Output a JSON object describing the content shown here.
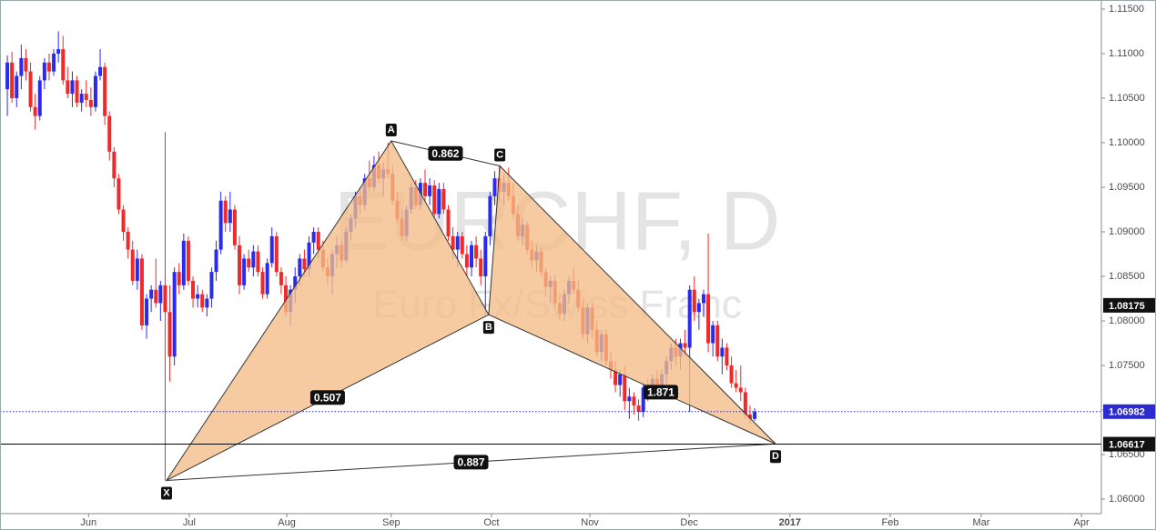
{
  "chart_data": {
    "type": "candlestick",
    "watermark": {
      "symbol": "EURCHF, D",
      "description": "Euro Fx/Swiss Franc"
    },
    "up_color": "#2b2bf0",
    "down_color": "#f02a2a",
    "pattern_color": "#f4bd87",
    "xlim": [
      -0.6,
      235.7
    ],
    "ylim": [
      1.05837,
      1.11602
    ],
    "xticks": [
      {
        "value": 17.5,
        "label": "Jun"
      },
      {
        "value": 39.2,
        "label": "Jul"
      },
      {
        "value": 60.2,
        "label": "Aug"
      },
      {
        "value": 82.7,
        "label": "Sep"
      },
      {
        "value": 104.3,
        "label": "Oct"
      },
      {
        "value": 125.5,
        "label": "Nov"
      },
      {
        "value": 146.9,
        "label": "Dec"
      },
      {
        "value": 168.6,
        "label": "2017"
      },
      {
        "value": 190.2,
        "label": "Feb"
      },
      {
        "value": 209.8,
        "label": "Mar"
      },
      {
        "value": 231.4,
        "label": "Apr"
      }
    ],
    "yticks": [
      {
        "value": 1.06,
        "label": "1.06000"
      },
      {
        "value": 1.065,
        "label": "1.06500"
      },
      {
        "value": 1.07,
        "label": "1.07000"
      },
      {
        "value": 1.075,
        "label": "1.07500"
      },
      {
        "value": 1.08,
        "label": "1.08000"
      },
      {
        "value": 1.085,
        "label": "1.08500"
      },
      {
        "value": 1.09,
        "label": "1.09000"
      },
      {
        "value": 1.095,
        "label": "1.09500"
      },
      {
        "value": 1.1,
        "label": "1.10000"
      },
      {
        "value": 1.105,
        "label": "1.10500"
      },
      {
        "value": 1.11,
        "label": "1.11000"
      },
      {
        "value": 1.115,
        "label": "1.11500"
      }
    ],
    "last_price": {
      "value": 1.06982,
      "label": "1.06982"
    },
    "levels": [
      {
        "value": 1.08175,
        "label": "1.08175"
      },
      {
        "value": 1.06617,
        "label": "1.06617"
      }
    ],
    "pattern": {
      "points": [
        {
          "label": "X",
          "x": 34.3,
          "y": 1.0621
        },
        {
          "label": "A",
          "x": 82.7,
          "y": 1.1002
        },
        {
          "label": "B",
          "x": 103.7,
          "y": 1.0807
        },
        {
          "label": "C",
          "x": 106.1,
          "y": 1.0974
        },
        {
          "label": "D",
          "x": 165.5,
          "y": 1.0662
        }
      ],
      "ratios": [
        0.862,
        0.507,
        1.871,
        0.887
      ]
    },
    "candles": [
      [
        1.106,
        1.1098,
        1.103,
        1.109
      ],
      [
        1.109,
        1.1102,
        1.1045,
        1.105
      ],
      [
        1.105,
        1.108,
        1.104,
        1.1075
      ],
      [
        1.1075,
        1.111,
        1.106,
        1.1095
      ],
      [
        1.1095,
        1.1105,
        1.107,
        1.108
      ],
      [
        1.108,
        1.109,
        1.1035,
        1.104
      ],
      [
        1.104,
        1.1055,
        1.1015,
        1.103
      ],
      [
        1.103,
        1.1075,
        1.1025,
        1.107
      ],
      [
        1.107,
        1.1095,
        1.106,
        1.109
      ],
      [
        1.109,
        1.11,
        1.107,
        1.108
      ],
      [
        1.108,
        1.1105,
        1.1075,
        1.11
      ],
      [
        1.11,
        1.1125,
        1.109,
        1.1105
      ],
      [
        1.1105,
        1.112,
        1.1065,
        1.107
      ],
      [
        1.107,
        1.1085,
        1.105,
        1.1055
      ],
      [
        1.1055,
        1.108,
        1.104,
        1.107
      ],
      [
        1.107,
        1.1075,
        1.104,
        1.1045
      ],
      [
        1.1045,
        1.106,
        1.1035,
        1.1055
      ],
      [
        1.1055,
        1.107,
        1.104,
        1.1048
      ],
      [
        1.1048,
        1.1062,
        1.103,
        1.104
      ],
      [
        1.104,
        1.108,
        1.1035,
        1.1075
      ],
      [
        1.1075,
        1.1105,
        1.107,
        1.1085
      ],
      [
        1.1085,
        1.109,
        1.102,
        1.103
      ],
      [
        1.103,
        1.1035,
        1.098,
        1.099
      ],
      [
        1.099,
        1.0995,
        1.095,
        1.096
      ],
      [
        1.096,
        1.0965,
        1.092,
        1.0925
      ],
      [
        1.0925,
        1.093,
        1.089,
        1.09
      ],
      [
        1.09,
        1.0905,
        1.087,
        1.088
      ],
      [
        1.088,
        1.089,
        1.084,
        1.0845
      ],
      [
        1.0845,
        1.088,
        1.0835,
        1.087
      ],
      [
        1.087,
        1.0875,
        1.079,
        1.0795
      ],
      [
        1.0795,
        1.083,
        1.078,
        1.0825
      ],
      [
        1.0825,
        1.084,
        1.081,
        1.0835
      ],
      [
        1.0835,
        1.087,
        1.0815,
        1.082
      ],
      [
        1.082,
        1.0845,
        1.08,
        1.084
      ],
      [
        1.084,
        1.1012,
        1.0621,
        1.081
      ],
      [
        1.081,
        1.084,
        1.0732,
        1.076
      ],
      [
        1.076,
        1.086,
        1.075,
        1.0855
      ],
      [
        1.0855,
        1.0865,
        1.083,
        1.084
      ],
      [
        1.084,
        1.0898,
        1.0835,
        1.089
      ],
      [
        1.089,
        1.0895,
        1.084,
        1.0845
      ],
      [
        1.0845,
        1.085,
        1.0815,
        1.0825
      ],
      [
        1.0825,
        1.084,
        1.0815,
        1.083
      ],
      [
        1.083,
        1.0835,
        1.081,
        1.0815
      ],
      [
        1.0815,
        1.083,
        1.0805,
        1.0825
      ],
      [
        1.0825,
        1.086,
        1.0815,
        1.0855
      ],
      [
        1.0855,
        1.089,
        1.0845,
        1.088
      ],
      [
        1.088,
        1.0945,
        1.0875,
        1.0935
      ],
      [
        1.0935,
        1.094,
        1.09,
        1.091
      ],
      [
        1.091,
        1.0945,
        1.09,
        1.0925
      ],
      [
        1.0925,
        1.093,
        1.088,
        1.0885
      ],
      [
        1.0885,
        1.0895,
        1.083,
        1.084
      ],
      [
        1.084,
        1.0875,
        1.0835,
        1.087
      ],
      [
        1.087,
        1.088,
        1.0855,
        1.086
      ],
      [
        1.086,
        1.0885,
        1.085,
        1.0878
      ],
      [
        1.0878,
        1.0885,
        1.085,
        1.0855
      ],
      [
        1.0855,
        1.086,
        1.0825,
        1.083
      ],
      [
        1.083,
        1.087,
        1.0825,
        1.0865
      ],
      [
        1.0865,
        1.0905,
        1.086,
        1.0895
      ],
      [
        1.0895,
        1.09,
        1.085,
        1.0855
      ],
      [
        1.0855,
        1.086,
        1.083,
        1.084
      ],
      [
        1.084,
        1.085,
        1.0805,
        1.081
      ],
      [
        1.081,
        1.084,
        1.0795,
        1.0835
      ],
      [
        1.0835,
        1.086,
        1.082,
        1.085
      ],
      [
        1.085,
        1.0875,
        1.084,
        1.087
      ],
      [
        1.087,
        1.088,
        1.085,
        1.0858
      ],
      [
        1.0858,
        1.0895,
        1.085,
        1.0888
      ],
      [
        1.0888,
        1.0905,
        1.0875,
        1.09
      ],
      [
        1.09,
        1.0905,
        1.087,
        1.088
      ],
      [
        1.088,
        1.089,
        1.0855,
        1.086
      ],
      [
        1.086,
        1.087,
        1.084,
        1.085
      ],
      [
        1.085,
        1.088,
        1.083,
        1.0875
      ],
      [
        1.0875,
        1.0895,
        1.086,
        1.0885
      ],
      [
        1.0885,
        1.089,
        1.086,
        1.0868
      ],
      [
        1.0868,
        1.0905,
        1.0865,
        1.09
      ],
      [
        1.09,
        1.092,
        1.089,
        1.0915
      ],
      [
        1.0915,
        1.0945,
        1.0905,
        1.094
      ],
      [
        1.094,
        1.095,
        1.092,
        1.093
      ],
      [
        1.093,
        1.0965,
        1.0925,
        1.096
      ],
      [
        1.096,
        1.098,
        1.0945,
        1.095
      ],
      [
        1.095,
        1.0985,
        1.0945,
        1.0975
      ],
      [
        1.0975,
        1.099,
        1.0955,
        1.096
      ],
      [
        1.096,
        1.0978,
        1.094,
        1.097
      ],
      [
        1.097,
        1.1,
        1.096,
        1.0965
      ],
      [
        1.0965,
        1.0975,
        1.093,
        1.0935
      ],
      [
        1.0935,
        1.0945,
        1.091,
        1.0915
      ],
      [
        1.0915,
        1.0925,
        1.089,
        1.0895
      ],
      [
        1.0895,
        1.093,
        1.089,
        1.0925
      ],
      [
        1.0925,
        1.0955,
        1.092,
        1.095
      ],
      [
        1.095,
        1.0958,
        1.0925,
        1.093
      ],
      [
        1.093,
        1.096,
        1.0925,
        1.0955
      ],
      [
        1.0955,
        1.097,
        1.0935,
        1.094
      ],
      [
        1.094,
        1.096,
        1.093,
        1.0952
      ],
      [
        1.0952,
        1.0958,
        1.0915,
        1.092
      ],
      [
        1.092,
        1.0955,
        1.0915,
        1.0948
      ],
      [
        1.0948,
        1.0955,
        1.092,
        1.0925
      ],
      [
        1.0925,
        1.093,
        1.089,
        1.0895
      ],
      [
        1.0895,
        1.0905,
        1.087,
        1.088
      ],
      [
        1.088,
        1.09,
        1.086,
        1.0895
      ],
      [
        1.0895,
        1.09,
        1.087,
        1.0875
      ],
      [
        1.0875,
        1.0885,
        1.085,
        1.086
      ],
      [
        1.086,
        1.089,
        1.085,
        1.0885
      ],
      [
        1.0885,
        1.0895,
        1.086,
        1.087
      ],
      [
        1.087,
        1.088,
        1.084,
        1.085
      ],
      [
        1.085,
        1.09,
        1.0807,
        1.0895
      ],
      [
        1.0895,
        1.0945,
        1.0885,
        1.094
      ],
      [
        1.094,
        1.0968,
        1.093,
        1.096
      ],
      [
        1.096,
        1.0974,
        1.0935,
        1.0945
      ],
      [
        1.0945,
        1.0965,
        1.093,
        1.0955
      ],
      [
        1.0955,
        1.0972,
        1.0935,
        1.094
      ],
      [
        1.094,
        1.0955,
        1.0915,
        1.092
      ],
      [
        1.092,
        1.093,
        1.089,
        1.0895
      ],
      [
        1.0895,
        1.0915,
        1.0885,
        1.0908
      ],
      [
        1.0908,
        1.0912,
        1.0875,
        1.088
      ],
      [
        1.088,
        1.089,
        1.086,
        1.0868
      ],
      [
        1.0868,
        1.0885,
        1.0855,
        1.0878
      ],
      [
        1.0878,
        1.0882,
        1.085,
        1.0855
      ],
      [
        1.0855,
        1.086,
        1.083,
        1.0838
      ],
      [
        1.0838,
        1.085,
        1.082,
        1.0845
      ],
      [
        1.0845,
        1.0852,
        1.0815,
        1.082
      ],
      [
        1.082,
        1.083,
        1.08,
        1.0808
      ],
      [
        1.0808,
        1.0835,
        1.08,
        1.083
      ],
      [
        1.083,
        1.085,
        1.082,
        1.0845
      ],
      [
        1.0845,
        1.086,
        1.083,
        1.0835
      ],
      [
        1.0835,
        1.0845,
        1.081,
        1.0815
      ],
      [
        1.0815,
        1.0825,
        1.078,
        1.0785
      ],
      [
        1.0785,
        1.082,
        1.0775,
        1.0815
      ],
      [
        1.0815,
        1.082,
        1.078,
        1.079
      ],
      [
        1.079,
        1.08,
        1.076,
        1.0765
      ],
      [
        1.0765,
        1.079,
        1.0755,
        1.0785
      ],
      [
        1.0785,
        1.079,
        1.075,
        1.0755
      ],
      [
        1.0755,
        1.0765,
        1.0735,
        1.0745
      ],
      [
        1.0745,
        1.0755,
        1.072,
        1.0728
      ],
      [
        1.0728,
        1.0745,
        1.0715,
        1.074
      ],
      [
        1.074,
        1.075,
        1.07,
        1.071
      ],
      [
        1.071,
        1.0725,
        1.069,
        1.0715
      ],
      [
        1.0715,
        1.072,
        1.0695,
        1.0705
      ],
      [
        1.0705,
        1.0712,
        1.0688,
        1.0698
      ],
      [
        1.0698,
        1.073,
        1.0692,
        1.0725
      ],
      [
        1.0725,
        1.0735,
        1.071,
        1.0718
      ],
      [
        1.0718,
        1.074,
        1.0712,
        1.0735
      ],
      [
        1.0735,
        1.0745,
        1.0715,
        1.0722
      ],
      [
        1.0722,
        1.0745,
        1.0715,
        1.074
      ],
      [
        1.074,
        1.076,
        1.073,
        1.0755
      ],
      [
        1.0755,
        1.0775,
        1.0745,
        1.077
      ],
      [
        1.077,
        1.078,
        1.075,
        1.076
      ],
      [
        1.076,
        1.078,
        1.0745,
        1.0775
      ],
      [
        1.0775,
        1.079,
        1.076,
        1.077
      ],
      [
        1.077,
        1.084,
        1.0698,
        1.0835
      ],
      [
        1.0835,
        1.085,
        1.08,
        1.081
      ],
      [
        1.081,
        1.0825,
        1.079,
        1.082
      ],
      [
        1.082,
        1.0835,
        1.0805,
        1.083
      ],
      [
        1.083,
        1.0898,
        1.0765,
        1.0775
      ],
      [
        1.0775,
        1.08,
        1.076,
        1.0795
      ],
      [
        1.0795,
        1.08,
        1.0755,
        1.076
      ],
      [
        1.076,
        1.078,
        1.074,
        1.077
      ],
      [
        1.077,
        1.0775,
        1.0745,
        1.075
      ],
      [
        1.075,
        1.076,
        1.0725,
        1.073
      ],
      [
        1.073,
        1.0745,
        1.072,
        1.0725
      ],
      [
        1.0725,
        1.075,
        1.071,
        1.072
      ],
      [
        1.072,
        1.0725,
        1.069,
        1.0695
      ],
      [
        1.0695,
        1.0705,
        1.0685,
        1.069
      ],
      [
        1.069,
        1.0702,
        1.0688,
        1.0698
      ]
    ]
  }
}
